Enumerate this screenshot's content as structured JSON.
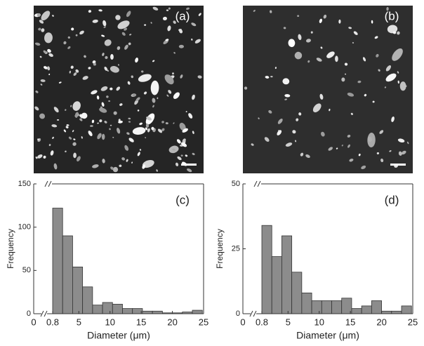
{
  "images": [
    {
      "label": "(a)"
    },
    {
      "label": "(b)"
    }
  ],
  "chart_data": [
    {
      "type": "histogram",
      "panel_label": "(c)",
      "x_label": "Diameter (μm)",
      "y_label": "Frequency",
      "bins": [
        0.8,
        2.4,
        4.0,
        5.6,
        7.2,
        8.8,
        10.4,
        12.0,
        13.6,
        15.2,
        16.8,
        18.4,
        20.0,
        21.6,
        23.2,
        24.8
      ],
      "values": [
        122,
        90,
        54,
        31,
        10,
        13,
        11,
        6,
        6,
        3,
        3,
        1,
        1,
        2,
        4
      ],
      "color": "#8c8c8c",
      "xlim": [
        0,
        25
      ],
      "xticks": [
        0,
        0.8,
        5,
        10,
        15,
        20,
        25
      ],
      "ylim": [
        0,
        150
      ],
      "yticks": [
        0,
        50,
        100,
        150
      ]
    },
    {
      "type": "histogram",
      "panel_label": "(d)",
      "x_label": "Diameter (μm)",
      "y_label": "Frequency",
      "bins": [
        0.8,
        2.4,
        4.0,
        5.6,
        7.2,
        8.8,
        10.4,
        12.0,
        13.6,
        15.2,
        16.8,
        18.4,
        20.0,
        21.6,
        23.2,
        24.8
      ],
      "values": [
        34,
        22,
        30,
        16,
        8,
        5,
        5,
        5,
        6,
        2,
        3,
        5,
        1,
        1,
        3
      ],
      "color": "#8c8c8c",
      "xlim": [
        0,
        25
      ],
      "xticks": [
        0,
        0.8,
        5,
        10,
        15,
        20,
        25
      ],
      "ylim": [
        0,
        50
      ],
      "yticks": [
        0,
        25,
        50
      ]
    }
  ]
}
